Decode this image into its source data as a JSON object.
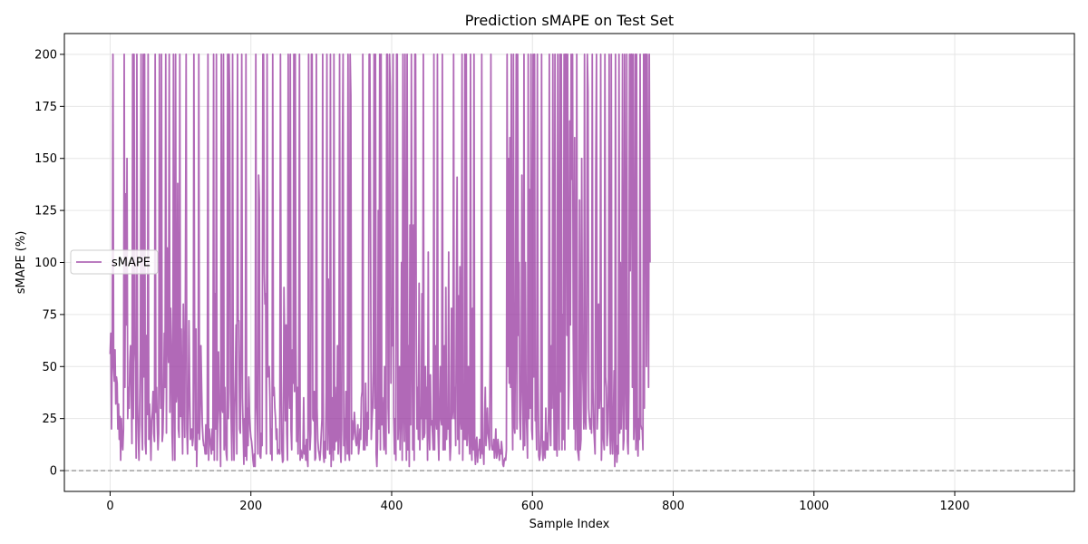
{
  "chart_data": {
    "type": "line",
    "title": "Prediction sMAPE on Test Set",
    "xlabel": "Sample Index",
    "ylabel": "sMAPE (%)",
    "xlim": [
      -65,
      1370
    ],
    "ylim": [
      -10,
      210
    ],
    "xticks": [
      0,
      200,
      400,
      600,
      800,
      1000,
      1200
    ],
    "yticks": [
      0,
      25,
      50,
      75,
      100,
      125,
      150,
      175,
      200
    ],
    "grid": true,
    "legend_position": "center-left",
    "reference_line": {
      "y": 0,
      "style": "dashed",
      "color": "#808080"
    },
    "series": [
      {
        "name": "sMAPE",
        "color": "#9b3fa3",
        "x_start": 0,
        "x_step": 1,
        "values": [
          56,
          66,
          20,
          60,
          200,
          50,
          43,
          58,
          32,
          45,
          42,
          20,
          32,
          15,
          26,
          5,
          25,
          15,
          10,
          20,
          200,
          40,
          133,
          70,
          150,
          25,
          40,
          30,
          52,
          60,
          40,
          13,
          200,
          25,
          200,
          60,
          52,
          6,
          200,
          32,
          16,
          5,
          30,
          58,
          200,
          22,
          10,
          200,
          45,
          200,
          13,
          8,
          65,
          27,
          200,
          15,
          32,
          20,
          5,
          24,
          28,
          38,
          18,
          14,
          200,
          28,
          40,
          22,
          10,
          18,
          200,
          52,
          30,
          200,
          14,
          18,
          35,
          66,
          40,
          200,
          18,
          107,
          65,
          52,
          200,
          28,
          78,
          60,
          18,
          5,
          200,
          42,
          5,
          200,
          33,
          38,
          138,
          20,
          16,
          200,
          26,
          68,
          30,
          8,
          80,
          42,
          16,
          90,
          200,
          20,
          8,
          30,
          72,
          40,
          15,
          18,
          20,
          12,
          16,
          200,
          70,
          10,
          68,
          2,
          22,
          18,
          200,
          15,
          28,
          60,
          40,
          22,
          15,
          12,
          12,
          8,
          22,
          8,
          20,
          200,
          5,
          20,
          16,
          12,
          8,
          20,
          10,
          200,
          5,
          85,
          20,
          200,
          5,
          30,
          57,
          32,
          22,
          2,
          200,
          30,
          28,
          200,
          10,
          40,
          15,
          8,
          5,
          200,
          25,
          200,
          175,
          38,
          24,
          5,
          200,
          28,
          5,
          30,
          45,
          70,
          8,
          200,
          72,
          72,
          20,
          18,
          66,
          200,
          35,
          20,
          3,
          25,
          7,
          200,
          5,
          30,
          12,
          45,
          27,
          20,
          16,
          14,
          10,
          5,
          2,
          8,
          2,
          200,
          35,
          25,
          8,
          142,
          130,
          7,
          6,
          18,
          12,
          200,
          200,
          95,
          80,
          85,
          8,
          200,
          45,
          47,
          50,
          35,
          8,
          20,
          5,
          200,
          36,
          40,
          30,
          25,
          15,
          20,
          8,
          10,
          10,
          8,
          200,
          50,
          10,
          4,
          5,
          88,
          60,
          24,
          70,
          18,
          5,
          200,
          42,
          30,
          200,
          20,
          10,
          58,
          42,
          200,
          38,
          200,
          62,
          14,
          40,
          8,
          30,
          200,
          5,
          10,
          8,
          6,
          10,
          35,
          8,
          12,
          5,
          15,
          6,
          2,
          200,
          27,
          10,
          18,
          200,
          200,
          25,
          24,
          38,
          5,
          6,
          200,
          30,
          15,
          10,
          8,
          5,
          10,
          18,
          25,
          200,
          8,
          4,
          14,
          6,
          38,
          200,
          10,
          92,
          25,
          8,
          200,
          2,
          35,
          20,
          5,
          200,
          10,
          40,
          14,
          15,
          60,
          8,
          20,
          200,
          10,
          4,
          20,
          150,
          200,
          12,
          25,
          5,
          38,
          30,
          8,
          200,
          10,
          5,
          200,
          180,
          8,
          24,
          15,
          18,
          28,
          22,
          14,
          12,
          15,
          22,
          8,
          12,
          20,
          15,
          35,
          38,
          200,
          10,
          25,
          10,
          42,
          18,
          12,
          28,
          20,
          200,
          200,
          120,
          15,
          24,
          30,
          50,
          200,
          30,
          200,
          8,
          2,
          15,
          125,
          20,
          200,
          10,
          200,
          22,
          35,
          25,
          10,
          50,
          14,
          8,
          200,
          200,
          30,
          18,
          200,
          184,
          42,
          78,
          60,
          200,
          25,
          8,
          25,
          5,
          200,
          200,
          15,
          28,
          50,
          10,
          30,
          100,
          5,
          200,
          30,
          14,
          200,
          33,
          5,
          200,
          10,
          60,
          2,
          118,
          22,
          200,
          70,
          10,
          118,
          5,
          200,
          200,
          65,
          20,
          40,
          15,
          90,
          10,
          30,
          25,
          85,
          15,
          200,
          16,
          18,
          50,
          25,
          40,
          5,
          105,
          20,
          10,
          46,
          22,
          24,
          18,
          10,
          200,
          10,
          60,
          25,
          20,
          200,
          18,
          5,
          30,
          50,
          25,
          22,
          200,
          10,
          10,
          60,
          10,
          88,
          15,
          30,
          20,
          105,
          18,
          5,
          12,
          78,
          25,
          30,
          200,
          25,
          40,
          12,
          80,
          141,
          15,
          84,
          8,
          98,
          25,
          20,
          200,
          5,
          38,
          15,
          200,
          15,
          200,
          12,
          22,
          50,
          15,
          8,
          200,
          15,
          5,
          78,
          10,
          200,
          10,
          3,
          14,
          16,
          4,
          10,
          10,
          15,
          6,
          10,
          200,
          8,
          10,
          3,
          25,
          40,
          12,
          20,
          30,
          18,
          15,
          10,
          60,
          200,
          12,
          10,
          10,
          15,
          6,
          12,
          20,
          6,
          8,
          15,
          12,
          5,
          10,
          8,
          14,
          10,
          3,
          2,
          5,
          6,
          5,
          10,
          200,
          50,
          150,
          42,
          160,
          40,
          200,
          38,
          10,
          200,
          22,
          18,
          80,
          200,
          20,
          200,
          65,
          100,
          25,
          15,
          38,
          142,
          50,
          10,
          200,
          12,
          100,
          30,
          20,
          6,
          200,
          25,
          135,
          30,
          200,
          20,
          15,
          200,
          45,
          200,
          24,
          28,
          10,
          200,
          46,
          7,
          5,
          8,
          20,
          200,
          12,
          5,
          14,
          10,
          6,
          30,
          10,
          18,
          10,
          30,
          200,
          24,
          12,
          60,
          30,
          200,
          52,
          10,
          200,
          10,
          25,
          7,
          200,
          36,
          10,
          200,
          38,
          200,
          10,
          75,
          15,
          200,
          10,
          200,
          200,
          65,
          200,
          20,
          42,
          168,
          70,
          200,
          140,
          200,
          66,
          20,
          160,
          10,
          30,
          200,
          10,
          8,
          5,
          130,
          10,
          15,
          150,
          58,
          40,
          20,
          200,
          25,
          20,
          58,
          200,
          182,
          30,
          24,
          20,
          25,
          18,
          200,
          40,
          22,
          15,
          8,
          142,
          200,
          20,
          30,
          80,
          30,
          38,
          200,
          5,
          20,
          30,
          15,
          10,
          200,
          45,
          40,
          12,
          20,
          38,
          200,
          18,
          8,
          200,
          18,
          8,
          25,
          48,
          2,
          200,
          12,
          4,
          12,
          8,
          200,
          18,
          100,
          20,
          40,
          200,
          10,
          15,
          200,
          50,
          20,
          200,
          14,
          8,
          38,
          200,
          96,
          200,
          200,
          40,
          200,
          15,
          25,
          200,
          10,
          200,
          18,
          7,
          25,
          15,
          200,
          22,
          20,
          20,
          10,
          200,
          30,
          200,
          200,
          50,
          200,
          110,
          40,
          200,
          100
        ]
      }
    ]
  }
}
